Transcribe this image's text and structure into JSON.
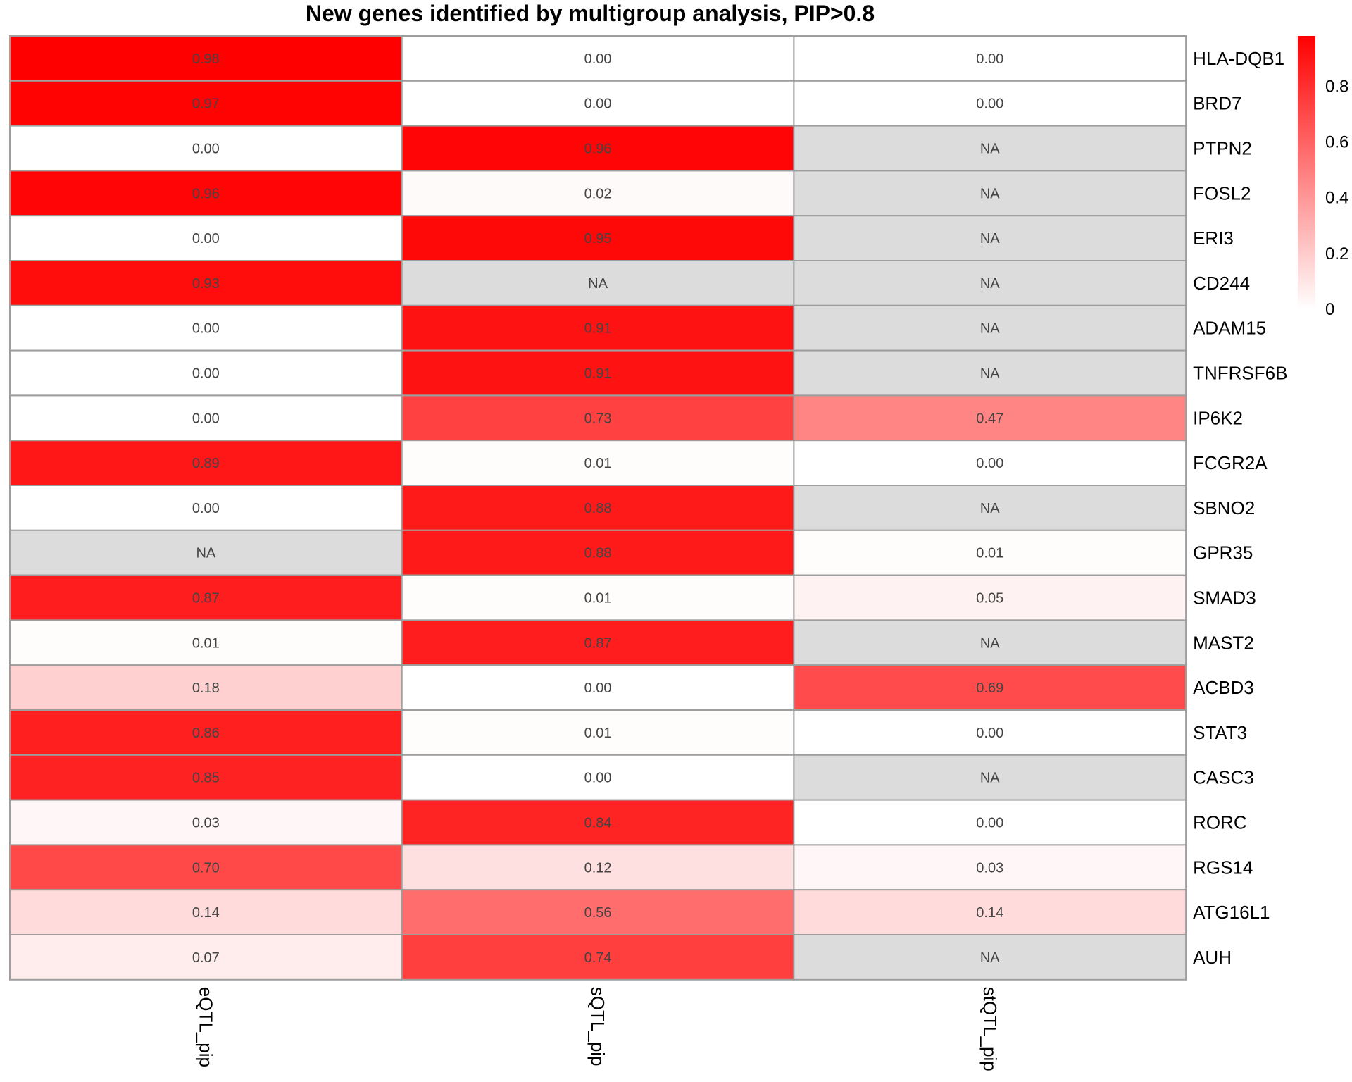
{
  "chart_data": {
    "type": "heatmap",
    "title": "New genes identified by multigroup analysis, PIP>0.8",
    "columns": [
      "eQTL_pip",
      "sQTL_pip",
      "stQTL_pip"
    ],
    "rows": [
      "HLA-DQB1",
      "BRD7",
      "PTPN2",
      "FOSL2",
      "ERI3",
      "CD244",
      "ADAM15",
      "TNFRSF6B",
      "IP6K2",
      "FCGR2A",
      "SBNO2",
      "GPR35",
      "SMAD3",
      "MAST2",
      "ACBD3",
      "STAT3",
      "CASC3",
      "RORC",
      "RGS14",
      "ATG16L1",
      "AUH"
    ],
    "values": [
      [
        0.98,
        0.0,
        0.0
      ],
      [
        0.97,
        0.0,
        0.0
      ],
      [
        0.0,
        0.96,
        null
      ],
      [
        0.96,
        0.02,
        null
      ],
      [
        0.0,
        0.95,
        null
      ],
      [
        0.93,
        null,
        null
      ],
      [
        0.0,
        0.91,
        null
      ],
      [
        0.0,
        0.91,
        null
      ],
      [
        0.0,
        0.73,
        0.47
      ],
      [
        0.89,
        0.01,
        0.0
      ],
      [
        0.0,
        0.88,
        null
      ],
      [
        null,
        0.88,
        0.01
      ],
      [
        0.87,
        0.01,
        0.05
      ],
      [
        0.01,
        0.87,
        null
      ],
      [
        0.18,
        0.0,
        0.69
      ],
      [
        0.86,
        0.01,
        0.0
      ],
      [
        0.85,
        0.0,
        null
      ],
      [
        0.03,
        0.84,
        0.0
      ],
      [
        0.7,
        0.12,
        0.03
      ],
      [
        0.14,
        0.56,
        0.14
      ],
      [
        0.07,
        0.74,
        null
      ]
    ],
    "na_label": "NA",
    "color_scale": {
      "low": "#ffffff",
      "high": "#ff0000",
      "na": "#dcdcdc",
      "border": "#9e9e9e",
      "domain": [
        0,
        0.98
      ]
    },
    "legend_ticks": [
      {
        "value": 0.8,
        "label": "0.8"
      },
      {
        "value": 0.6,
        "label": "0.6"
      },
      {
        "value": 0.4,
        "label": "0.4"
      },
      {
        "value": 0.2,
        "label": "0.2"
      },
      {
        "value": 0,
        "label": "0"
      }
    ]
  }
}
